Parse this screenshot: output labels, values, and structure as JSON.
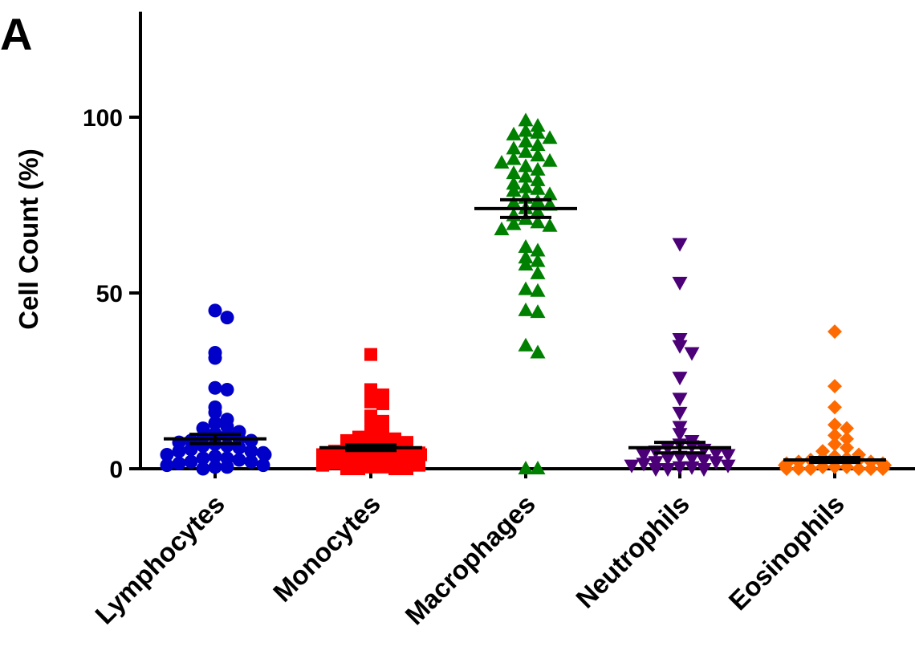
{
  "panel_label": "A",
  "chart_data": {
    "type": "scatter",
    "title": "",
    "xlabel": "",
    "ylabel": "Cell Count (%)",
    "ylim": [
      0,
      130
    ],
    "yticks": [
      0,
      50,
      100
    ],
    "ytick_labels": [
      "0",
      "50",
      "100"
    ],
    "categories": [
      "Lymphocytes",
      "Monocytes",
      "Macrophages",
      "Neutrophils",
      "Eosinophils"
    ],
    "series": [
      {
        "category": "Lymphocytes",
        "marker": "circle",
        "color": "#0000c8",
        "mean": 8.5,
        "sem": 1.3,
        "values": [
          45,
          43,
          33,
          31.5,
          23,
          22.5,
          17.5,
          16,
          14,
          13,
          12,
          11.5,
          10.5,
          10,
          9.5,
          9,
          8.5,
          8,
          8,
          7.5,
          7,
          6.5,
          6.5,
          6,
          5.5,
          5,
          5,
          4.5,
          4,
          4,
          3.5,
          3,
          3,
          2.5,
          2,
          2,
          1.5,
          1,
          1,
          0.5,
          0.5,
          0
        ]
      },
      {
        "category": "Monocytes",
        "marker": "square",
        "color": "#ff0000",
        "mean": 6,
        "sem": 0.8,
        "values": [
          32.5,
          22.5,
          21,
          19,
          18.5,
          15,
          13.5,
          12,
          11,
          10,
          9.5,
          9,
          8.5,
          8,
          7.5,
          7,
          6.5,
          6,
          6,
          5.5,
          5,
          5,
          4.5,
          4,
          4,
          3.5,
          3,
          3,
          2.5,
          2,
          2,
          1.5,
          1,
          1,
          0.5,
          0.5,
          0,
          0,
          0,
          0
        ]
      },
      {
        "category": "Macrophages",
        "marker": "triangle-up",
        "color": "#008000",
        "mean": 74,
        "sem": 2.5,
        "values": [
          99,
          97.5,
          96,
          95.5,
          95,
          94,
          93,
          92,
          91,
          90,
          89,
          88,
          87.5,
          87,
          86,
          85,
          84,
          83,
          82,
          81,
          80,
          79.5,
          79,
          78,
          77,
          76,
          75.5,
          75,
          74,
          73,
          72,
          71,
          70,
          69.5,
          69,
          68,
          63,
          62,
          60,
          59,
          58,
          55.5,
          51,
          50.5,
          45,
          44.5,
          35,
          33,
          0,
          0
        ]
      },
      {
        "category": "Neutrophils",
        "marker": "triangle-down",
        "color": "#4b0078",
        "mean": 6,
        "sem": 1.5,
        "values": [
          64,
          53,
          37,
          35,
          33,
          26,
          20,
          16,
          12,
          10,
          8,
          7,
          6.5,
          6,
          5.5,
          5,
          4.5,
          4,
          4,
          3.5,
          3,
          3,
          2.5,
          2,
          2,
          1.5,
          1,
          1,
          0.5,
          0.5,
          0,
          0,
          0
        ]
      },
      {
        "category": "Eosinophils",
        "marker": "diamond",
        "color": "#ff6a00",
        "mean": 2.5,
        "sem": 0.7,
        "values": [
          39,
          23.5,
          17.5,
          12.5,
          11.5,
          9.5,
          8.5,
          7,
          6,
          5,
          4,
          3.5,
          3,
          3,
          2.5,
          2.5,
          2,
          2,
          1.5,
          1.5,
          1,
          1,
          1,
          0.5,
          0.5,
          0.5,
          0,
          0,
          0,
          0,
          0,
          0
        ]
      }
    ]
  }
}
